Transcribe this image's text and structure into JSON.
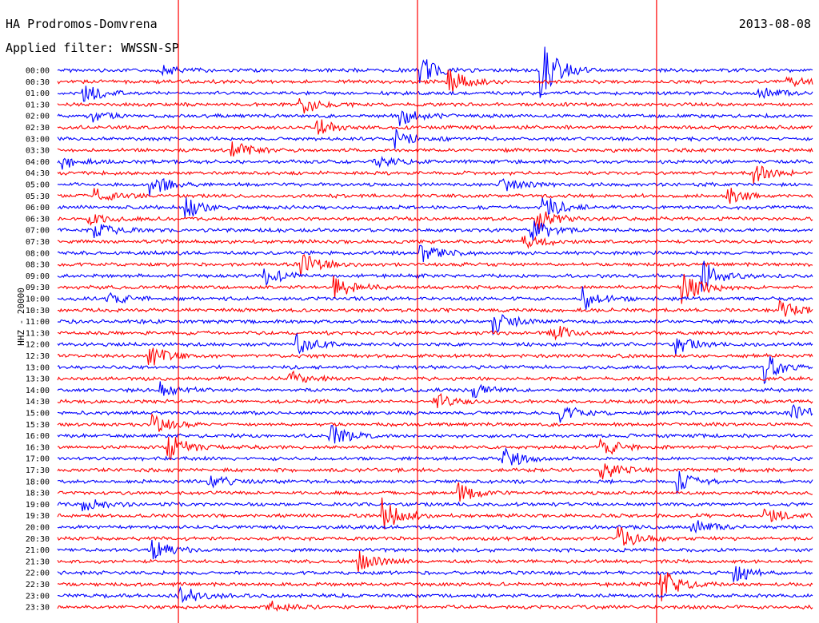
{
  "header": {
    "station": "HA Prodromos-Domvrena",
    "date": "2013-08-08",
    "filter": "Applied filter: WWSSN-SP"
  },
  "chart_data": {
    "type": "line",
    "title": "HA Prodromos-Domvrena",
    "subtitle": "Applied filter: WWSSN-SP",
    "date": "2013-08-08",
    "ylabel": "HHZ - 20000",
    "xlabel": "",
    "grid": false,
    "legend": "none",
    "colors": {
      "even_trace": "#0000ff",
      "odd_trace": "#ff0000",
      "marker_line": "#ff0000"
    },
    "row_labels": [
      "00:00",
      "00:30",
      "01:00",
      "01:30",
      "02:00",
      "02:30",
      "03:00",
      "03:30",
      "04:00",
      "04:30",
      "05:00",
      "05:30",
      "06:00",
      "06:30",
      "07:00",
      "07:30",
      "08:00",
      "08:30",
      "09:00",
      "09:30",
      "10:00",
      "10:30",
      "11:00",
      "11:30",
      "12:00",
      "12:30",
      "13:00",
      "13:30",
      "14:00",
      "14:30",
      "15:00",
      "15:30",
      "16:00",
      "16:30",
      "17:00",
      "17:30",
      "18:00",
      "18:30",
      "19:00",
      "19:30",
      "20:00",
      "20:30",
      "21:00",
      "21:30",
      "22:00",
      "22:30",
      "23:00",
      "23:30"
    ],
    "row_minutes": 30,
    "events": [
      {
        "row": 0,
        "minute": 4.2,
        "amp": 1.0
      },
      {
        "row": 0,
        "minute": 14.4,
        "amp": 3.0
      },
      {
        "row": 0,
        "minute": 19.2,
        "amp": 6.0
      },
      {
        "row": 1,
        "minute": 15.5,
        "amp": 3.0
      },
      {
        "row": 1,
        "minute": 29.0,
        "amp": 1.5
      },
      {
        "row": 2,
        "minute": 1.0,
        "amp": 2.0
      },
      {
        "row": 2,
        "minute": 27.8,
        "amp": 1.5
      },
      {
        "row": 3,
        "minute": 9.6,
        "amp": 2.5
      },
      {
        "row": 4,
        "minute": 1.2,
        "amp": 1.5
      },
      {
        "row": 4,
        "minute": 13.6,
        "amp": 2.0
      },
      {
        "row": 5,
        "minute": 10.3,
        "amp": 2.0
      },
      {
        "row": 6,
        "minute": 13.4,
        "amp": 1.8
      },
      {
        "row": 7,
        "minute": 6.9,
        "amp": 2.0
      },
      {
        "row": 8,
        "minute": 0.2,
        "amp": 1.5
      },
      {
        "row": 8,
        "minute": 12.5,
        "amp": 1.5
      },
      {
        "row": 9,
        "minute": 27.7,
        "amp": 1.8
      },
      {
        "row": 10,
        "minute": 3.7,
        "amp": 2.5
      },
      {
        "row": 10,
        "minute": 17.6,
        "amp": 2.2
      },
      {
        "row": 11,
        "minute": 1.5,
        "amp": 1.5
      },
      {
        "row": 11,
        "minute": 26.6,
        "amp": 1.8
      },
      {
        "row": 12,
        "minute": 5.1,
        "amp": 2.5
      },
      {
        "row": 12,
        "minute": 19.3,
        "amp": 2.8
      },
      {
        "row": 13,
        "minute": 1.2,
        "amp": 1.5
      },
      {
        "row": 13,
        "minute": 19.0,
        "amp": 2.5
      },
      {
        "row": 14,
        "minute": 1.5,
        "amp": 2.0
      },
      {
        "row": 14,
        "minute": 18.8,
        "amp": 3.5
      },
      {
        "row": 15,
        "minute": 18.5,
        "amp": 2.0
      },
      {
        "row": 16,
        "minute": 14.4,
        "amp": 2.0
      },
      {
        "row": 17,
        "minute": 9.7,
        "amp": 2.5
      },
      {
        "row": 18,
        "minute": 8.2,
        "amp": 2.0
      },
      {
        "row": 18,
        "minute": 25.6,
        "amp": 3.5
      },
      {
        "row": 19,
        "minute": 11.0,
        "amp": 2.5
      },
      {
        "row": 19,
        "minute": 24.8,
        "amp": 4.0
      },
      {
        "row": 20,
        "minute": 2.0,
        "amp": 1.5
      },
      {
        "row": 20,
        "minute": 20.9,
        "amp": 2.5
      },
      {
        "row": 21,
        "minute": 28.7,
        "amp": 1.8
      },
      {
        "row": 22,
        "minute": 17.3,
        "amp": 2.5
      },
      {
        "row": 23,
        "minute": 19.5,
        "amp": 2.5
      },
      {
        "row": 24,
        "minute": 9.5,
        "amp": 2.2
      },
      {
        "row": 24,
        "minute": 24.6,
        "amp": 2.0
      },
      {
        "row": 25,
        "minute": 3.6,
        "amp": 2.5
      },
      {
        "row": 26,
        "minute": 28.1,
        "amp": 3.0
      },
      {
        "row": 27,
        "minute": 9.2,
        "amp": 1.5
      },
      {
        "row": 28,
        "minute": 4.1,
        "amp": 1.5
      },
      {
        "row": 28,
        "minute": 16.5,
        "amp": 1.5
      },
      {
        "row": 29,
        "minute": 15.0,
        "amp": 2.0
      },
      {
        "row": 30,
        "minute": 20.0,
        "amp": 1.8
      },
      {
        "row": 30,
        "minute": 29.2,
        "amp": 1.8
      },
      {
        "row": 31,
        "minute": 3.8,
        "amp": 2.0
      },
      {
        "row": 32,
        "minute": 10.8,
        "amp": 2.5
      },
      {
        "row": 33,
        "minute": 4.4,
        "amp": 3.0
      },
      {
        "row": 33,
        "minute": 21.6,
        "amp": 2.0
      },
      {
        "row": 34,
        "minute": 17.7,
        "amp": 2.5
      },
      {
        "row": 35,
        "minute": 21.6,
        "amp": 2.0
      },
      {
        "row": 36,
        "minute": 6.0,
        "amp": 1.8
      },
      {
        "row": 36,
        "minute": 24.6,
        "amp": 2.2
      },
      {
        "row": 37,
        "minute": 15.9,
        "amp": 2.0
      },
      {
        "row": 38,
        "minute": 1.0,
        "amp": 1.5
      },
      {
        "row": 39,
        "minute": 12.9,
        "amp": 3.5
      },
      {
        "row": 39,
        "minute": 28.1,
        "amp": 2.0
      },
      {
        "row": 40,
        "minute": 25.2,
        "amp": 1.8
      },
      {
        "row": 41,
        "minute": 22.3,
        "amp": 2.5
      },
      {
        "row": 42,
        "minute": 3.8,
        "amp": 1.8
      },
      {
        "row": 43,
        "minute": 11.9,
        "amp": 2.2
      },
      {
        "row": 44,
        "minute": 26.8,
        "amp": 2.5
      },
      {
        "row": 45,
        "minute": 24.0,
        "amp": 3.5
      },
      {
        "row": 46,
        "minute": 4.8,
        "amp": 2.5
      },
      {
        "row": 47,
        "minute": 8.3,
        "amp": 1.5
      }
    ],
    "marker_minutes": [
      4.8,
      14.3,
      23.8
    ]
  }
}
